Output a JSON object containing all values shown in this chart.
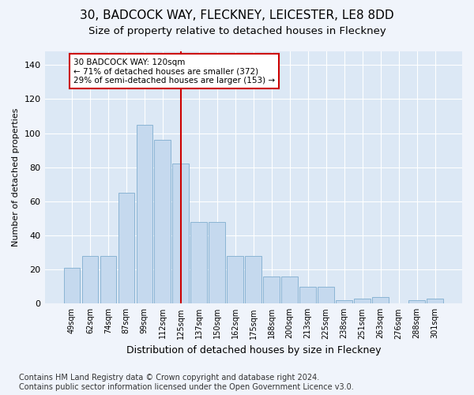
{
  "title": "30, BADCOCK WAY, FLECKNEY, LEICESTER, LE8 8DD",
  "subtitle": "Size of property relative to detached houses in Fleckney",
  "xlabel": "Distribution of detached houses by size in Fleckney",
  "ylabel": "Number of detached properties",
  "categories": [
    "49sqm",
    "62sqm",
    "74sqm",
    "87sqm",
    "99sqm",
    "112sqm",
    "125sqm",
    "137sqm",
    "150sqm",
    "162sqm",
    "175sqm",
    "188sqm",
    "200sqm",
    "213sqm",
    "225sqm",
    "238sqm",
    "251sqm",
    "263sqm",
    "276sqm",
    "288sqm",
    "301sqm"
  ],
  "values": [
    21,
    28,
    28,
    65,
    105,
    96,
    82,
    48,
    48,
    28,
    28,
    16,
    16,
    10,
    10,
    2,
    3,
    4,
    0,
    2,
    3
  ],
  "bar_color": "#c5d9ee",
  "bar_edgecolor": "#8ab4d4",
  "vline_x": 6,
  "vline_color": "#cc0000",
  "annotation_text": "30 BADCOCK WAY: 120sqm\n← 71% of detached houses are smaller (372)\n29% of semi-detached houses are larger (153) →",
  "annotation_box_edgecolor": "#cc0000",
  "annotation_box_facecolor": "#ffffff",
  "ylim": [
    0,
    148
  ],
  "yticks": [
    0,
    20,
    40,
    60,
    80,
    100,
    120,
    140
  ],
  "footer": "Contains HM Land Registry data © Crown copyright and database right 2024.\nContains public sector information licensed under the Open Government Licence v3.0.",
  "background_color": "#f0f4fb",
  "plot_background_color": "#dce8f5",
  "grid_color": "#ffffff",
  "title_fontsize": 11,
  "subtitle_fontsize": 9.5,
  "footer_fontsize": 7
}
